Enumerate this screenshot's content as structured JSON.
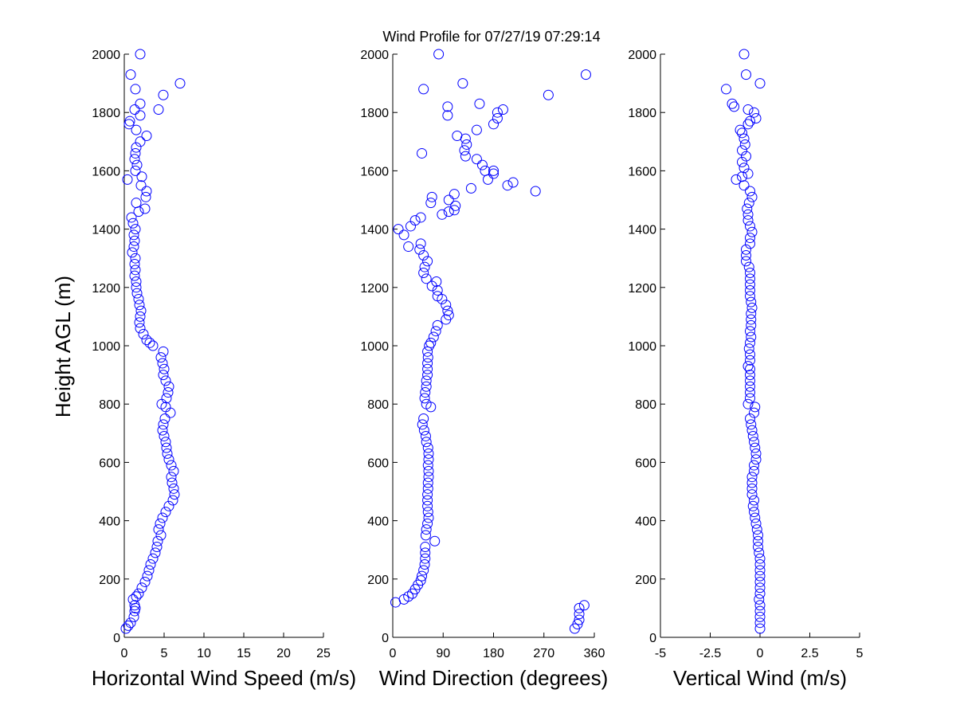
{
  "title": "Wind Profile for  07/27/19 07:29:14",
  "ylabel": "Height AGL (m)",
  "marker_color": "#0000ff",
  "chart_data": [
    {
      "type": "scatter",
      "xlabel": "Horizontal Wind Speed (m/s)",
      "ylabel": "Height AGL (m)",
      "xlim": [
        0,
        25
      ],
      "ylim": [
        0,
        2000
      ],
      "xticks": [
        0,
        5,
        10,
        15,
        20,
        25
      ],
      "xtick_labels": [
        "0",
        "5",
        "10",
        "15",
        "20",
        "25"
      ],
      "yticks": [
        0,
        200,
        400,
        600,
        800,
        1000,
        1200,
        1400,
        1600,
        1800,
        2000
      ],
      "ytick_labels": [
        "0",
        "200",
        "400",
        "600",
        "800",
        "1000",
        "1200",
        "1400",
        "1600",
        "1800",
        "2000"
      ],
      "grid": false,
      "points": [
        [
          0.2,
          30
        ],
        [
          0.5,
          40
        ],
        [
          0.8,
          50
        ],
        [
          1.2,
          70
        ],
        [
          1.3,
          90
        ],
        [
          1.4,
          100
        ],
        [
          1.3,
          110
        ],
        [
          1.1,
          130
        ],
        [
          1.5,
          140
        ],
        [
          1.8,
          150
        ],
        [
          2.2,
          170
        ],
        [
          2.6,
          190
        ],
        [
          2.9,
          210
        ],
        [
          3.1,
          230
        ],
        [
          3.3,
          250
        ],
        [
          3.6,
          270
        ],
        [
          3.9,
          290
        ],
        [
          4.1,
          310
        ],
        [
          4.2,
          330
        ],
        [
          4.6,
          350
        ],
        [
          4.3,
          370
        ],
        [
          4.5,
          390
        ],
        [
          4.8,
          410
        ],
        [
          5.2,
          430
        ],
        [
          5.6,
          450
        ],
        [
          6.1,
          470
        ],
        [
          6.3,
          490
        ],
        [
          6.2,
          510
        ],
        [
          6.0,
          530
        ],
        [
          5.9,
          550
        ],
        [
          6.2,
          570
        ],
        [
          5.9,
          590
        ],
        [
          5.6,
          610
        ],
        [
          5.4,
          630
        ],
        [
          5.3,
          650
        ],
        [
          5.2,
          670
        ],
        [
          5.0,
          690
        ],
        [
          4.8,
          710
        ],
        [
          4.9,
          730
        ],
        [
          5.1,
          750
        ],
        [
          5.8,
          770
        ],
        [
          5.2,
          790
        ],
        [
          4.7,
          800
        ],
        [
          5.3,
          820
        ],
        [
          5.5,
          840
        ],
        [
          5.6,
          860
        ],
        [
          5.2,
          880
        ],
        [
          4.9,
          900
        ],
        [
          5.0,
          920
        ],
        [
          4.8,
          940
        ],
        [
          4.6,
          960
        ],
        [
          4.9,
          980
        ],
        [
          3.6,
          1000
        ],
        [
          3.2,
          1010
        ],
        [
          2.8,
          1020
        ],
        [
          2.4,
          1040
        ],
        [
          2.0,
          1060
        ],
        [
          1.9,
          1080
        ],
        [
          2.0,
          1100
        ],
        [
          2.1,
          1120
        ],
        [
          1.9,
          1140
        ],
        [
          1.8,
          1160
        ],
        [
          1.6,
          1180
        ],
        [
          1.5,
          1200
        ],
        [
          1.5,
          1220
        ],
        [
          1.3,
          1240
        ],
        [
          1.4,
          1260
        ],
        [
          1.3,
          1280
        ],
        [
          1.4,
          1300
        ],
        [
          1.0,
          1320
        ],
        [
          1.2,
          1340
        ],
        [
          1.3,
          1360
        ],
        [
          1.2,
          1380
        ],
        [
          1.4,
          1400
        ],
        [
          1.1,
          1420
        ],
        [
          0.9,
          1440
        ],
        [
          1.8,
          1460
        ],
        [
          2.6,
          1470
        ],
        [
          1.5,
          1490
        ],
        [
          2.7,
          1510
        ],
        [
          2.8,
          1530
        ],
        [
          2.1,
          1550
        ],
        [
          0.4,
          1570
        ],
        [
          2.2,
          1580
        ],
        [
          1.4,
          1600
        ],
        [
          1.6,
          1620
        ],
        [
          1.3,
          1640
        ],
        [
          1.4,
          1660
        ],
        [
          1.5,
          1680
        ],
        [
          2.0,
          1700
        ],
        [
          2.8,
          1720
        ],
        [
          1.5,
          1740
        ],
        [
          0.6,
          1760
        ],
        [
          0.7,
          1770
        ],
        [
          2.0,
          1790
        ],
        [
          1.3,
          1810
        ],
        [
          2.0,
          1830
        ],
        [
          4.3,
          1810
        ],
        [
          4.9,
          1860
        ],
        [
          1.4,
          1880
        ],
        [
          7.0,
          1900
        ],
        [
          0.8,
          1930
        ],
        [
          2.0,
          2000
        ]
      ]
    },
    {
      "type": "scatter",
      "xlabel": "Wind Direction (degrees)",
      "xlim": [
        0,
        360
      ],
      "ylim": [
        0,
        2000
      ],
      "xticks": [
        0,
        90,
        180,
        270,
        360
      ],
      "xtick_labels": [
        "0",
        "90",
        "180",
        "270",
        "360"
      ],
      "yticks": [
        0,
        200,
        400,
        600,
        800,
        1000,
        1200,
        1400,
        1600,
        1800,
        2000
      ],
      "ytick_labels": [
        "0",
        "200",
        "400",
        "600",
        "800",
        "1000",
        "1200",
        "1400",
        "1600",
        "1800",
        "2000"
      ],
      "grid": false,
      "points": [
        [
          325,
          30
        ],
        [
          330,
          45
        ],
        [
          333,
          60
        ],
        [
          333,
          80
        ],
        [
          333,
          100
        ],
        [
          342,
          110
        ],
        [
          5,
          120
        ],
        [
          20,
          130
        ],
        [
          28,
          140
        ],
        [
          35,
          150
        ],
        [
          40,
          165
        ],
        [
          45,
          180
        ],
        [
          50,
          195
        ],
        [
          52,
          210
        ],
        [
          55,
          230
        ],
        [
          57,
          250
        ],
        [
          58,
          270
        ],
        [
          58,
          290
        ],
        [
          58,
          310
        ],
        [
          75,
          330
        ],
        [
          59,
          350
        ],
        [
          60,
          370
        ],
        [
          62,
          390
        ],
        [
          64,
          410
        ],
        [
          63,
          430
        ],
        [
          62,
          450
        ],
        [
          62,
          470
        ],
        [
          62,
          490
        ],
        [
          63,
          510
        ],
        [
          63,
          530
        ],
        [
          64,
          550
        ],
        [
          64,
          570
        ],
        [
          63,
          590
        ],
        [
          64,
          610
        ],
        [
          64,
          630
        ],
        [
          63,
          650
        ],
        [
          60,
          670
        ],
        [
          59,
          690
        ],
        [
          56,
          710
        ],
        [
          53,
          730
        ],
        [
          55,
          750
        ],
        [
          68,
          790
        ],
        [
          60,
          800
        ],
        [
          57,
          820
        ],
        [
          58,
          840
        ],
        [
          60,
          860
        ],
        [
          60,
          880
        ],
        [
          62,
          900
        ],
        [
          62,
          920
        ],
        [
          62,
          940
        ],
        [
          63,
          960
        ],
        [
          62,
          980
        ],
        [
          65,
          1000
        ],
        [
          68,
          1010
        ],
        [
          73,
          1030
        ],
        [
          77,
          1050
        ],
        [
          80,
          1070
        ],
        [
          95,
          1090
        ],
        [
          100,
          1105
        ],
        [
          98,
          1120
        ],
        [
          95,
          1140
        ],
        [
          88,
          1160
        ],
        [
          80,
          1170
        ],
        [
          80,
          1190
        ],
        [
          70,
          1205
        ],
        [
          78,
          1220
        ],
        [
          60,
          1230
        ],
        [
          55,
          1250
        ],
        [
          57,
          1270
        ],
        [
          62,
          1290
        ],
        [
          55,
          1310
        ],
        [
          48,
          1330
        ],
        [
          50,
          1350
        ],
        [
          28,
          1340
        ],
        [
          20,
          1380
        ],
        [
          10,
          1400
        ],
        [
          32,
          1410
        ],
        [
          40,
          1430
        ],
        [
          50,
          1440
        ],
        [
          88,
          1450
        ],
        [
          100,
          1460
        ],
        [
          110,
          1465
        ],
        [
          112,
          1480
        ],
        [
          68,
          1490
        ],
        [
          70,
          1510
        ],
        [
          100,
          1500
        ],
        [
          110,
          1520
        ],
        [
          140,
          1540
        ],
        [
          205,
          1550
        ],
        [
          215,
          1560
        ],
        [
          255,
          1530
        ],
        [
          170,
          1570
        ],
        [
          180,
          1590
        ],
        [
          165,
          1600
        ],
        [
          180,
          1600
        ],
        [
          160,
          1620
        ],
        [
          150,
          1640
        ],
        [
          130,
          1650
        ],
        [
          128,
          1670
        ],
        [
          132,
          1690
        ],
        [
          130,
          1710
        ],
        [
          115,
          1720
        ],
        [
          150,
          1740
        ],
        [
          180,
          1760
        ],
        [
          187,
          1780
        ],
        [
          98,
          1790
        ],
        [
          187,
          1800
        ],
        [
          197,
          1810
        ],
        [
          98,
          1820
        ],
        [
          155,
          1830
        ],
        [
          278,
          1860
        ],
        [
          55,
          1880
        ],
        [
          125,
          1900
        ],
        [
          345,
          1930
        ],
        [
          52,
          1660
        ],
        [
          82,
          2000
        ]
      ]
    },
    {
      "type": "scatter",
      "xlabel": "Vertical Wind (m/s)",
      "xlim": [
        -5,
        5
      ],
      "ylim": [
        0,
        2000
      ],
      "xticks": [
        -5,
        -2.5,
        0,
        2.5,
        5
      ],
      "xtick_labels": [
        "-5",
        "-2.5",
        "0",
        "2.5",
        "5"
      ],
      "yticks": [
        0,
        200,
        400,
        600,
        800,
        1000,
        1200,
        1400,
        1600,
        1800,
        2000
      ],
      "ytick_labels": [
        "0",
        "200",
        "400",
        "600",
        "800",
        "1000",
        "1200",
        "1400",
        "1600",
        "1800",
        "2000"
      ],
      "grid": false,
      "points": [
        [
          0.0,
          30
        ],
        [
          0.0,
          50
        ],
        [
          0.0,
          70
        ],
        [
          0.0,
          90
        ],
        [
          0.0,
          110
        ],
        [
          -0.05,
          130
        ],
        [
          0.0,
          150
        ],
        [
          0.0,
          170
        ],
        [
          0.0,
          190
        ],
        [
          0.0,
          210
        ],
        [
          0.0,
          230
        ],
        [
          0.0,
          250
        ],
        [
          0.0,
          270
        ],
        [
          -0.05,
          290
        ],
        [
          -0.1,
          310
        ],
        [
          -0.1,
          330
        ],
        [
          -0.1,
          350
        ],
        [
          -0.15,
          370
        ],
        [
          -0.2,
          390
        ],
        [
          -0.25,
          410
        ],
        [
          -0.3,
          430
        ],
        [
          -0.35,
          450
        ],
        [
          -0.3,
          470
        ],
        [
          -0.4,
          490
        ],
        [
          -0.4,
          510
        ],
        [
          -0.4,
          530
        ],
        [
          -0.4,
          550
        ],
        [
          -0.3,
          570
        ],
        [
          -0.3,
          590
        ],
        [
          -0.2,
          610
        ],
        [
          -0.2,
          630
        ],
        [
          -0.25,
          650
        ],
        [
          -0.3,
          670
        ],
        [
          -0.35,
          690
        ],
        [
          -0.4,
          710
        ],
        [
          -0.45,
          730
        ],
        [
          -0.5,
          750
        ],
        [
          -0.3,
          770
        ],
        [
          -0.25,
          790
        ],
        [
          -0.6,
          800
        ],
        [
          -0.5,
          820
        ],
        [
          -0.5,
          840
        ],
        [
          -0.5,
          860
        ],
        [
          -0.5,
          880
        ],
        [
          -0.5,
          900
        ],
        [
          -0.5,
          920
        ],
        [
          -0.6,
          930
        ],
        [
          -0.5,
          950
        ],
        [
          -0.5,
          970
        ],
        [
          -0.55,
          990
        ],
        [
          -0.5,
          1010
        ],
        [
          -0.45,
          1030
        ],
        [
          -0.5,
          1050
        ],
        [
          -0.45,
          1070
        ],
        [
          -0.45,
          1090
        ],
        [
          -0.45,
          1110
        ],
        [
          -0.4,
          1130
        ],
        [
          -0.45,
          1150
        ],
        [
          -0.5,
          1170
        ],
        [
          -0.5,
          1190
        ],
        [
          -0.5,
          1210
        ],
        [
          -0.5,
          1230
        ],
        [
          -0.5,
          1250
        ],
        [
          -0.55,
          1270
        ],
        [
          -0.7,
          1290
        ],
        [
          -0.7,
          1310
        ],
        [
          -0.7,
          1330
        ],
        [
          -0.5,
          1350
        ],
        [
          -0.5,
          1370
        ],
        [
          -0.4,
          1390
        ],
        [
          -0.5,
          1410
        ],
        [
          -0.6,
          1430
        ],
        [
          -0.6,
          1450
        ],
        [
          -0.65,
          1470
        ],
        [
          -0.55,
          1490
        ],
        [
          -0.4,
          1510
        ],
        [
          -0.5,
          1530
        ],
        [
          -0.8,
          1550
        ],
        [
          -1.2,
          1570
        ],
        [
          -0.9,
          1580
        ],
        [
          -0.6,
          1590
        ],
        [
          -0.8,
          1610
        ],
        [
          -0.9,
          1630
        ],
        [
          -0.7,
          1650
        ],
        [
          -0.9,
          1670
        ],
        [
          -0.75,
          1690
        ],
        [
          -0.8,
          1710
        ],
        [
          -0.9,
          1730
        ],
        [
          -1.0,
          1740
        ],
        [
          -0.6,
          1760
        ],
        [
          -0.5,
          1770
        ],
        [
          -0.2,
          1780
        ],
        [
          -0.3,
          1800
        ],
        [
          -0.6,
          1810
        ],
        [
          -1.3,
          1820
        ],
        [
          -1.4,
          1830
        ],
        [
          -1.7,
          1880
        ],
        [
          0.0,
          1900
        ],
        [
          -0.7,
          1930
        ],
        [
          -0.8,
          2000
        ]
      ]
    }
  ]
}
